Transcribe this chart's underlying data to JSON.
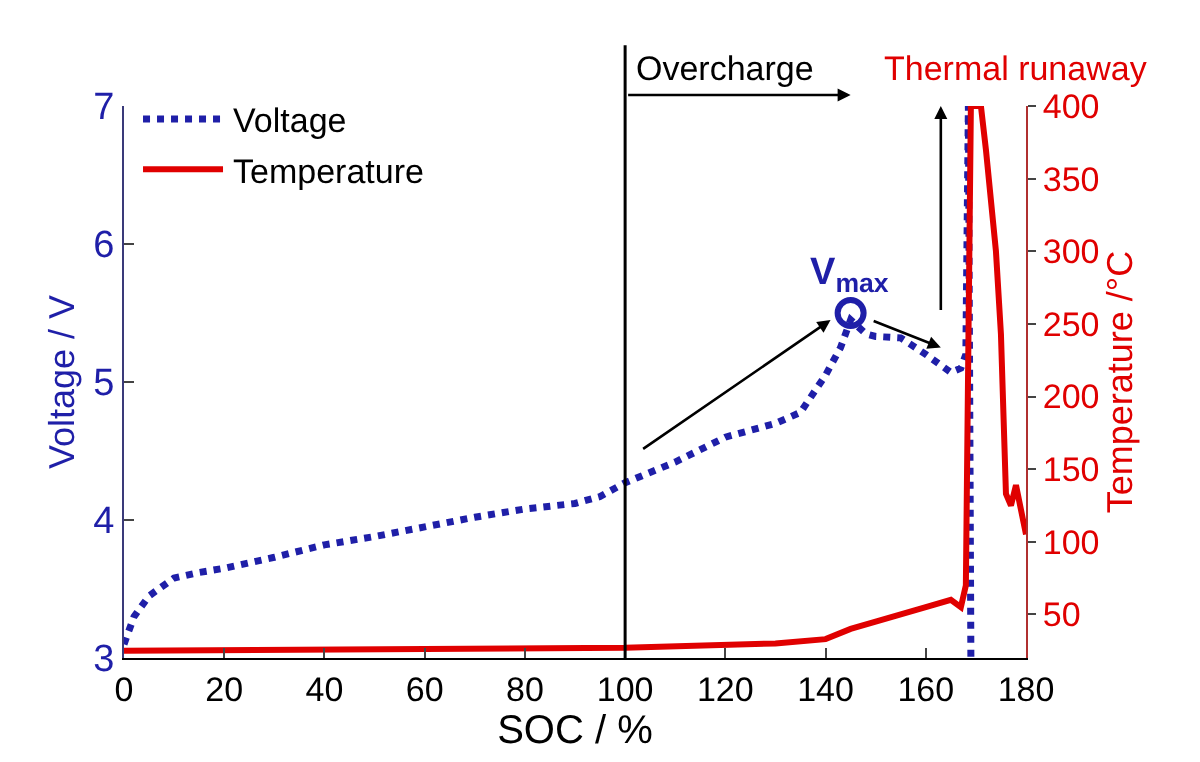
{
  "chart_data": {
    "type": "line",
    "xlabel": "SOC / %",
    "ylabel": "Voltage / V",
    "y2label": "Temperature /°C",
    "xlim": [
      0,
      180
    ],
    "xticks": [
      0,
      20,
      40,
      60,
      80,
      100,
      120,
      140,
      160,
      180
    ],
    "ylim": [
      3,
      7
    ],
    "yticks": [
      3,
      4,
      5,
      6,
      7
    ],
    "y2lim": [
      20,
      400
    ],
    "y2ticks": [
      50,
      100,
      150,
      200,
      250,
      300,
      350,
      400
    ],
    "legend": "top left",
    "series": [
      {
        "name": "Voltage",
        "color": "#1f1fa8",
        "line_style": "dotted",
        "x": [
          0,
          2,
          5,
          10,
          15,
          20,
          30,
          40,
          50,
          60,
          70,
          80,
          90,
          95,
          100,
          110,
          120,
          130,
          135,
          140,
          143,
          145,
          148,
          150,
          155,
          160,
          165,
          167,
          168,
          168.5,
          169
        ],
        "values": [
          3.1,
          3.3,
          3.45,
          3.58,
          3.62,
          3.65,
          3.73,
          3.82,
          3.88,
          3.95,
          4.02,
          4.08,
          4.12,
          4.17,
          4.27,
          4.42,
          4.6,
          4.7,
          4.78,
          5.05,
          5.25,
          5.45,
          5.35,
          5.33,
          5.32,
          5.2,
          5.07,
          5.1,
          5.2,
          7.0,
          3.0
        ]
      },
      {
        "name": "Temperature",
        "color": "#e00000",
        "line_style": "solid",
        "axis": "y2",
        "x": [
          0,
          100,
          130,
          140,
          145,
          150,
          160,
          165,
          167,
          168,
          169,
          171,
          172,
          174,
          175,
          176,
          177,
          178,
          180
        ],
        "values": [
          25,
          27,
          30,
          33,
          40,
          45,
          55,
          60,
          55,
          70,
          400,
          400,
          370,
          300,
          243,
          133,
          125,
          139,
          105
        ]
      },
      {
        "type": "scatter",
        "marker": "circle",
        "color": "#1f1fa8",
        "x": [
          145
        ],
        "values": [
          5.5
        ]
      }
    ],
    "ref_lines": [
      {
        "axis": "x",
        "value": 100,
        "label": "Overcharge",
        "color": "#000000"
      }
    ],
    "annotations": [
      "Thermal runaway",
      {
        "text": "V$_{max}$",
        "x": 145,
        "y": 5.5
      }
    ]
  }
}
